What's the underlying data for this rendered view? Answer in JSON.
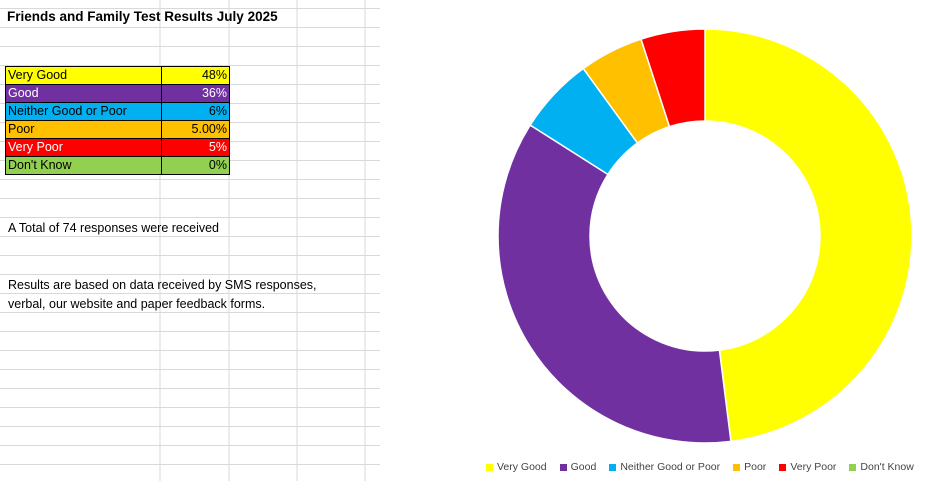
{
  "sheet": {
    "title": "Friends and Family Test Results July 2025",
    "total_text": "A Total of 74 responses were received",
    "note_line1": "Results are based on data received by SMS responses,",
    "note_line2": "verbal, our website and paper feedback forms."
  },
  "table": [
    {
      "label": "Very Good",
      "value": "48%",
      "color": "#FFFF00"
    },
    {
      "label": "Good",
      "value": "36%",
      "color": "#7030A0"
    },
    {
      "label": "Neither Good or Poor",
      "value": "6%",
      "color": "#00B0F0"
    },
    {
      "label": "Poor",
      "value": "5.00%",
      "color": "#FFC000"
    },
    {
      "label": "Very Poor",
      "value": "5%",
      "color": "#FF0000"
    },
    {
      "label": "Don't Know",
      "value": "0%",
      "color": "#92D050"
    }
  ],
  "chart_data": {
    "type": "pie",
    "variant": "doughnut",
    "categories": [
      "Very Good",
      "Good",
      "Neither Good or Poor",
      "Poor",
      "Very Poor",
      "Don't Know"
    ],
    "values": [
      48,
      36,
      6,
      5,
      5,
      0
    ],
    "colors": [
      "#FFFF00",
      "#7030A0",
      "#00B0F0",
      "#FFC000",
      "#FF0000",
      "#92D050"
    ],
    "legend_position": "bottom-right",
    "title": ""
  }
}
